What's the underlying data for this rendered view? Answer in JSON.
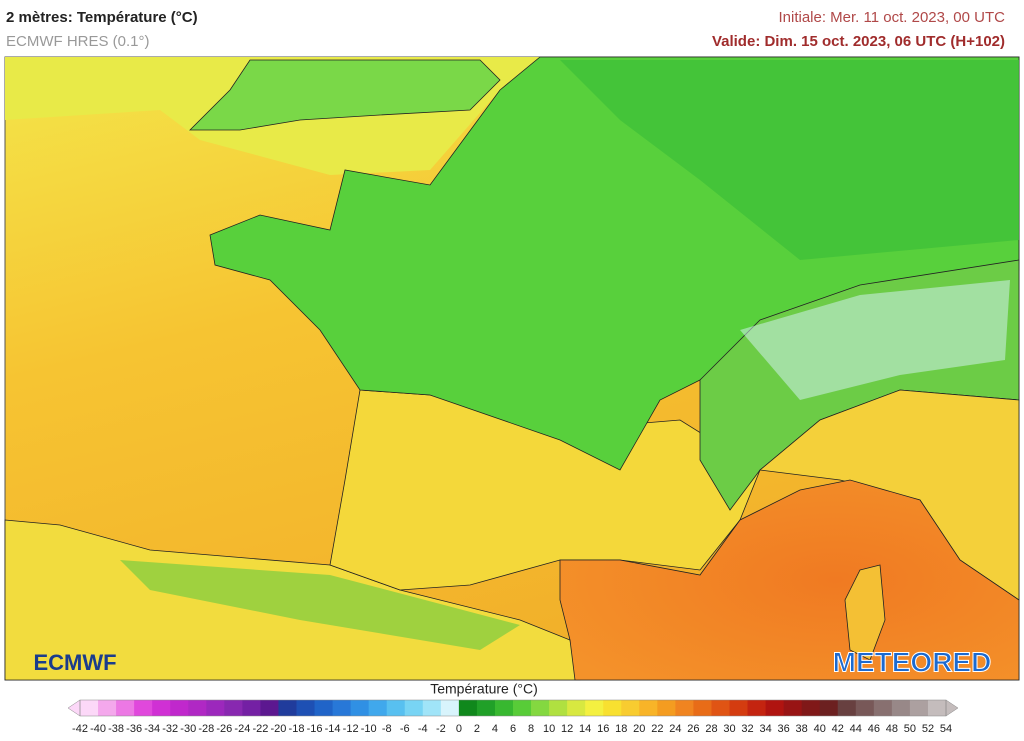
{
  "header": {
    "title": "2 mètres: Température (°C)",
    "model": "ECMWF HRES (0.1°)",
    "initial": "Initiale: Mer. 11 oct. 2023, 00 UTC",
    "valid": "Valide: Dim. 15 oct. 2023, 06 UTC (H+102)"
  },
  "legend": {
    "title": "Température (°C)",
    "ticks": [
      -42,
      -40,
      -38,
      -36,
      -34,
      -32,
      -30,
      -28,
      -26,
      -24,
      -22,
      -20,
      -18,
      -16,
      -14,
      -12,
      -10,
      -8,
      -6,
      -4,
      -2,
      0,
      2,
      4,
      6,
      8,
      10,
      12,
      14,
      16,
      18,
      20,
      22,
      24,
      26,
      28,
      30,
      32,
      34,
      36,
      38,
      40,
      42,
      44,
      46,
      48,
      50,
      52,
      54
    ],
    "colors": [
      "#fcd8f8",
      "#f4a8ec",
      "#ec78e4",
      "#e048dc",
      "#d030d4",
      "#c028cc",
      "#b028c4",
      "#9c28bc",
      "#8828b0",
      "#7420a4",
      "#5c1890",
      "#203c9c",
      "#1e50b4",
      "#2064c8",
      "#2878d8",
      "#3090e4",
      "#40a8ec",
      "#58c0f0",
      "#78d4f4",
      "#a0e4f8",
      "#d8f4fc",
      "#10881c",
      "#20a028",
      "#38b830",
      "#58cc38",
      "#84d840",
      "#b0e040",
      "#d8e840",
      "#f4f040",
      "#f8e030",
      "#f8cc30",
      "#f8b428",
      "#f49c20",
      "#f08420",
      "#e86c18",
      "#e05414",
      "#d43c10",
      "#c42410",
      "#b01410",
      "#981414",
      "#801818",
      "#6c2020",
      "#684040",
      "#785858",
      "#887070",
      "#988888",
      "#aca0a0",
      "#c4bcbc"
    ]
  },
  "logos": {
    "left": "ECMWF",
    "right": "METEORED"
  }
}
